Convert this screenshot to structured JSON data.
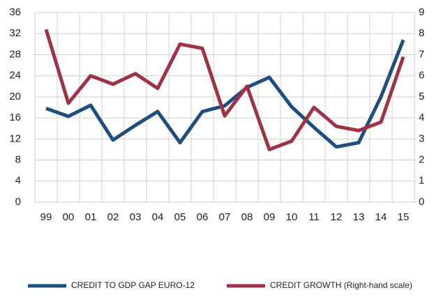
{
  "chart_data": {
    "type": "line",
    "categories": [
      "99",
      "00",
      "01",
      "02",
      "03",
      "04",
      "05",
      "06",
      "07",
      "08",
      "09",
      "10",
      "11",
      "12",
      "13",
      "14",
      "15"
    ],
    "series": [
      {
        "name": "CREDIT TO GDP GAP EURO-12",
        "color": "#1d4e7e",
        "axis": "y",
        "values": [
          17.8,
          16.3,
          18.4,
          11.8,
          14.6,
          17.2,
          11.3,
          17.2,
          18.3,
          21.8,
          23.7,
          18.1,
          14.2,
          10.5,
          11.3,
          20,
          30.8
        ]
      },
      {
        "name": "CREDIT GROWTH (Right-hand scale)",
        "color": "#9e3346",
        "axis": "y2",
        "values": [
          8.2,
          4.7,
          6.0,
          5.6,
          6.1,
          5.4,
          7.5,
          7.3,
          4.1,
          5.5,
          2.5,
          2.9,
          4.5,
          3.6,
          3.4,
          3.8,
          6.9
        ]
      }
    ],
    "ylim": [
      0,
      36
    ],
    "yticks": [
      0,
      4,
      8,
      12,
      16,
      20,
      24,
      28,
      32,
      36
    ],
    "y2lim": [
      0,
      9
    ],
    "y2ticks": [
      0,
      1,
      2,
      3,
      4,
      5,
      6,
      7,
      8,
      9
    ],
    "grid": true,
    "legend": "bottom"
  }
}
